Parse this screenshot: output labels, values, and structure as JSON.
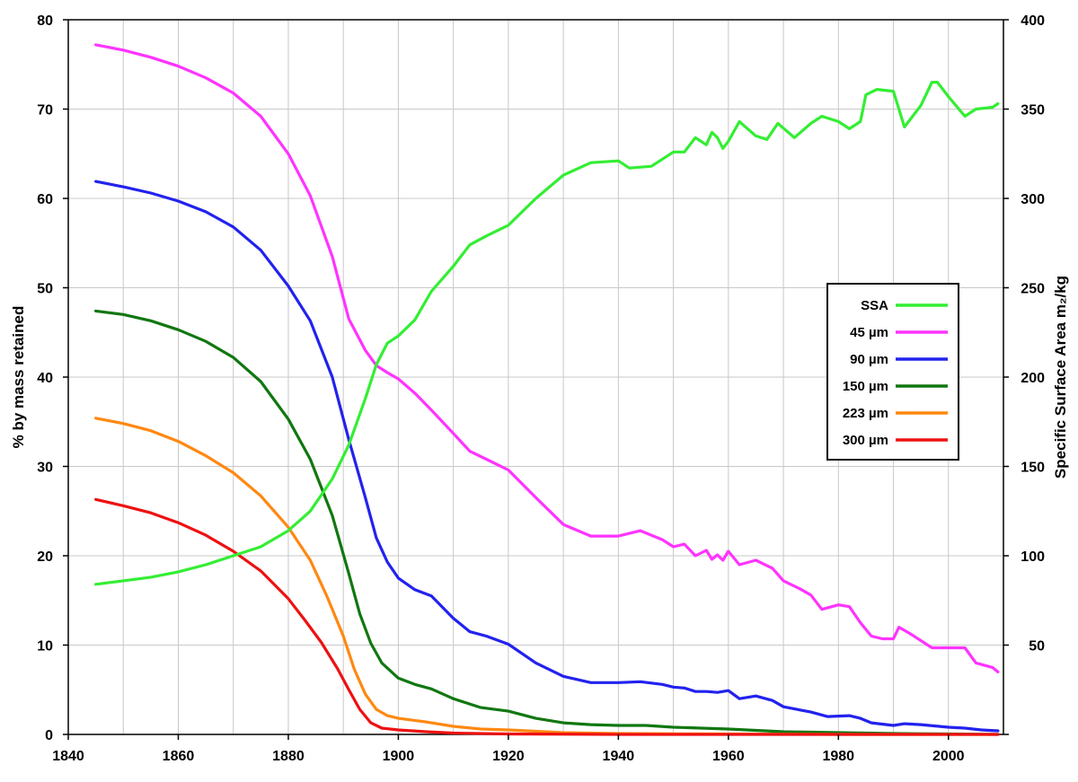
{
  "chart_data": {
    "type": "line",
    "title": "",
    "xlabel": "",
    "ylabel": "% by mass retained",
    "y2label": "Specific Surface Area m₂/kg",
    "xlim": [
      1840,
      2010
    ],
    "ylim": [
      0,
      80
    ],
    "y2lim": [
      0,
      400
    ],
    "grid": true,
    "legend_position": "right",
    "x_ticks": [
      "1840",
      "1860",
      "1880",
      "1900",
      "1920",
      "1940",
      "1960",
      "1980",
      "2000"
    ],
    "y_ticks": [
      "0",
      "10",
      "20",
      "30",
      "40",
      "50",
      "60",
      "70",
      "80"
    ],
    "y2_ticks": [
      "",
      "50",
      "100",
      "150",
      "200",
      "250",
      "300",
      "350",
      "400"
    ],
    "series": [
      {
        "name": "SSA",
        "color": "#33ee33",
        "axis": "right",
        "x": [
          1845,
          1850,
          1855,
          1860,
          1865,
          1870,
          1875,
          1880,
          1884,
          1888,
          1891,
          1894,
          1896,
          1898,
          1900,
          1903,
          1906,
          1910,
          1913,
          1916,
          1920,
          1925,
          1930,
          1935,
          1940,
          1942,
          1946,
          1950,
          1952,
          1954,
          1956,
          1957,
          1958,
          1959,
          1960,
          1962,
          1965,
          1967,
          1969,
          1972,
          1975,
          1977,
          1980,
          1982,
          1984,
          1985,
          1987,
          1990,
          1992,
          1995,
          1997,
          1998,
          2000,
          2003,
          2005,
          2008,
          2009
        ],
        "values": [
          84,
          86,
          88,
          91,
          95,
          100,
          105,
          114,
          125,
          143,
          162,
          188,
          207,
          219,
          223,
          232,
          248,
          262,
          274,
          279,
          285,
          300,
          313,
          320,
          321,
          317,
          318,
          326,
          326,
          334,
          330,
          337,
          334,
          328,
          332,
          343,
          335,
          333,
          342,
          334,
          342,
          346,
          343,
          339,
          343,
          358,
          361,
          360,
          340,
          352,
          365,
          365,
          357,
          346,
          350,
          351,
          353
        ]
      },
      {
        "name": "45 µm",
        "color": "#ff33ff",
        "axis": "left",
        "x": [
          1845,
          1850,
          1855,
          1860,
          1865,
          1870,
          1875,
          1880,
          1884,
          1888,
          1891,
          1894,
          1896,
          1898,
          1900,
          1903,
          1906,
          1910,
          1913,
          1916,
          1920,
          1925,
          1930,
          1935,
          1940,
          1944,
          1948,
          1950,
          1952,
          1954,
          1956,
          1957,
          1958,
          1959,
          1960,
          1962,
          1965,
          1968,
          1970,
          1973,
          1975,
          1977,
          1980,
          1982,
          1984,
          1986,
          1988,
          1990,
          1991,
          1993,
          1997,
          2000,
          2003,
          2005,
          2008,
          2009
        ],
        "values": [
          77.2,
          76.6,
          75.8,
          74.8,
          73.5,
          71.8,
          69.2,
          65.0,
          60.3,
          53.5,
          46.5,
          43.0,
          41.3,
          40.5,
          39.8,
          38.2,
          36.3,
          33.7,
          31.7,
          30.8,
          29.6,
          26.5,
          23.5,
          22.2,
          22.2,
          22.8,
          21.8,
          21.0,
          21.3,
          20.0,
          20.6,
          19.6,
          20.1,
          19.5,
          20.5,
          19.0,
          19.5,
          18.6,
          17.2,
          16.3,
          15.6,
          14.0,
          14.5,
          14.3,
          12.5,
          11.0,
          10.7,
          10.7,
          12.0,
          11.3,
          9.7,
          9.7,
          9.7,
          8.0,
          7.5,
          7.0
        ]
      },
      {
        "name": "90 µm",
        "color": "#2222ee",
        "axis": "left",
        "x": [
          1845,
          1850,
          1855,
          1860,
          1865,
          1870,
          1875,
          1880,
          1884,
          1888,
          1891,
          1894,
          1896,
          1898,
          1900,
          1903,
          1906,
          1910,
          1913,
          1916,
          1920,
          1925,
          1930,
          1935,
          1940,
          1944,
          1948,
          1950,
          1952,
          1954,
          1956,
          1958,
          1960,
          1962,
          1965,
          1968,
          1970,
          1975,
          1978,
          1982,
          1984,
          1986,
          1990,
          1992,
          1995,
          2000,
          2003,
          2006,
          2009
        ],
        "values": [
          61.9,
          61.3,
          60.6,
          59.7,
          58.5,
          56.8,
          54.2,
          50.2,
          46.3,
          40.0,
          33.0,
          26.5,
          22.0,
          19.3,
          17.5,
          16.2,
          15.5,
          13.0,
          11.5,
          11.0,
          10.1,
          8.0,
          6.5,
          5.8,
          5.8,
          5.9,
          5.6,
          5.3,
          5.2,
          4.8,
          4.8,
          4.7,
          4.9,
          4.0,
          4.3,
          3.8,
          3.1,
          2.5,
          2.0,
          2.1,
          1.8,
          1.3,
          1.0,
          1.2,
          1.1,
          0.8,
          0.7,
          0.5,
          0.4
        ]
      },
      {
        "name": "150 µm",
        "color": "#117711",
        "axis": "left",
        "x": [
          1845,
          1850,
          1855,
          1860,
          1865,
          1870,
          1875,
          1880,
          1884,
          1888,
          1891,
          1893,
          1895,
          1897,
          1900,
          1903,
          1906,
          1910,
          1915,
          1920,
          1925,
          1930,
          1935,
          1940,
          1945,
          1950,
          1960,
          1970,
          1980,
          1990,
          2000,
          2009
        ],
        "values": [
          47.4,
          47.0,
          46.3,
          45.3,
          44.0,
          42.2,
          39.5,
          35.3,
          30.8,
          24.5,
          18.0,
          13.5,
          10.2,
          8.0,
          6.3,
          5.6,
          5.1,
          4.0,
          3.0,
          2.6,
          1.8,
          1.3,
          1.1,
          1.0,
          1.0,
          0.8,
          0.6,
          0.3,
          0.2,
          0.1,
          0.05,
          0.0
        ]
      },
      {
        "name": "223 µm",
        "color": "#ff8811",
        "axis": "left",
        "x": [
          1845,
          1850,
          1855,
          1860,
          1865,
          1870,
          1875,
          1880,
          1884,
          1887,
          1890,
          1892,
          1894,
          1896,
          1898,
          1900,
          1905,
          1910,
          1915,
          1920,
          1930,
          1940,
          1960,
          1980,
          2009
        ],
        "values": [
          35.4,
          34.8,
          34.0,
          32.8,
          31.2,
          29.3,
          26.7,
          23.2,
          19.5,
          15.5,
          11.0,
          7.3,
          4.5,
          2.8,
          2.1,
          1.8,
          1.4,
          0.9,
          0.6,
          0.5,
          0.2,
          0.1,
          0.05,
          0.0,
          0.0
        ]
      },
      {
        "name": "300 µm",
        "color": "#ee1111",
        "axis": "left",
        "x": [
          1845,
          1850,
          1855,
          1860,
          1865,
          1870,
          1875,
          1880,
          1883,
          1886,
          1889,
          1891,
          1893,
          1895,
          1897,
          1900,
          1905,
          1910,
          1920,
          1940,
          2009
        ],
        "values": [
          26.3,
          25.6,
          24.8,
          23.7,
          22.3,
          20.5,
          18.3,
          15.2,
          12.8,
          10.3,
          7.3,
          5.0,
          2.8,
          1.3,
          0.7,
          0.5,
          0.3,
          0.15,
          0.05,
          0.0,
          0.0
        ]
      }
    ]
  }
}
